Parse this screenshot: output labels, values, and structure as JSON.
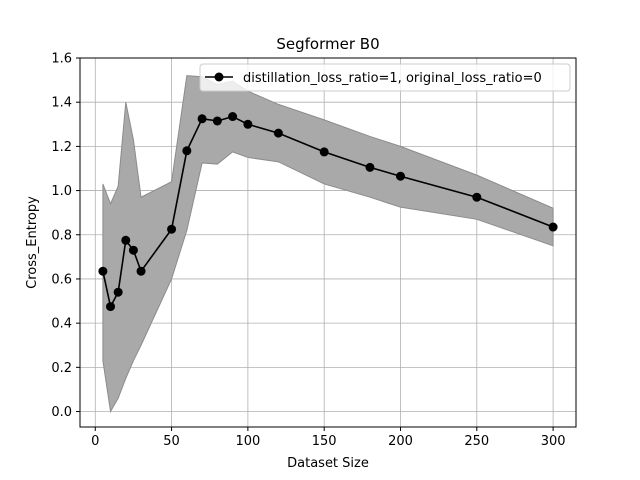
{
  "chart_data": {
    "type": "line",
    "title": "Segformer B0",
    "xlabel": "Dataset Size",
    "ylabel": "Cross_Entropy",
    "xlim": [
      -10,
      315
    ],
    "ylim": [
      -0.07,
      1.6
    ],
    "xticks": [
      0,
      50,
      100,
      150,
      200,
      250,
      300
    ],
    "yticks": [
      0.0,
      0.2,
      0.4,
      0.6,
      0.8,
      1.0,
      1.2,
      1.4,
      1.6
    ],
    "xtick_labels": [
      "0",
      "50",
      "100",
      "150",
      "200",
      "250",
      "300"
    ],
    "ytick_labels": [
      "0.0",
      "0.2",
      "0.4",
      "0.6",
      "0.8",
      "1.0",
      "1.2",
      "1.4",
      "1.6"
    ],
    "grid": true,
    "legend_position": "upper right",
    "colors": {
      "line": "#000000",
      "band": "#a9a9a9",
      "band_edge": "#8c8c8c",
      "grid": "#b0b0b0"
    },
    "series": [
      {
        "name": "distillation_loss_ratio=1, original_loss_ratio=0",
        "marker": "circle",
        "x": [
          5,
          10,
          15,
          20,
          25,
          30,
          50,
          60,
          70,
          80,
          90,
          100,
          120,
          150,
          180,
          200,
          250,
          300
        ],
        "y": [
          0.635,
          0.475,
          0.54,
          0.775,
          0.73,
          0.635,
          0.825,
          1.18,
          1.325,
          1.315,
          1.335,
          1.3,
          1.26,
          1.175,
          1.105,
          1.065,
          0.97,
          0.835
        ],
        "band": {
          "x": [
            5,
            10,
            15,
            20,
            25,
            30,
            50,
            60,
            70,
            80,
            90,
            100,
            120,
            150,
            180,
            200,
            250,
            300
          ],
          "upper": [
            1.03,
            0.94,
            1.02,
            1.4,
            1.23,
            0.97,
            1.04,
            1.52,
            1.515,
            1.48,
            1.495,
            1.45,
            1.39,
            1.32,
            1.245,
            1.2,
            1.07,
            0.92
          ],
          "lower": [
            0.23,
            0.0,
            0.06,
            0.15,
            0.23,
            0.3,
            0.6,
            0.82,
            1.125,
            1.12,
            1.175,
            1.15,
            1.13,
            1.03,
            0.97,
            0.925,
            0.87,
            0.75
          ]
        }
      }
    ]
  }
}
